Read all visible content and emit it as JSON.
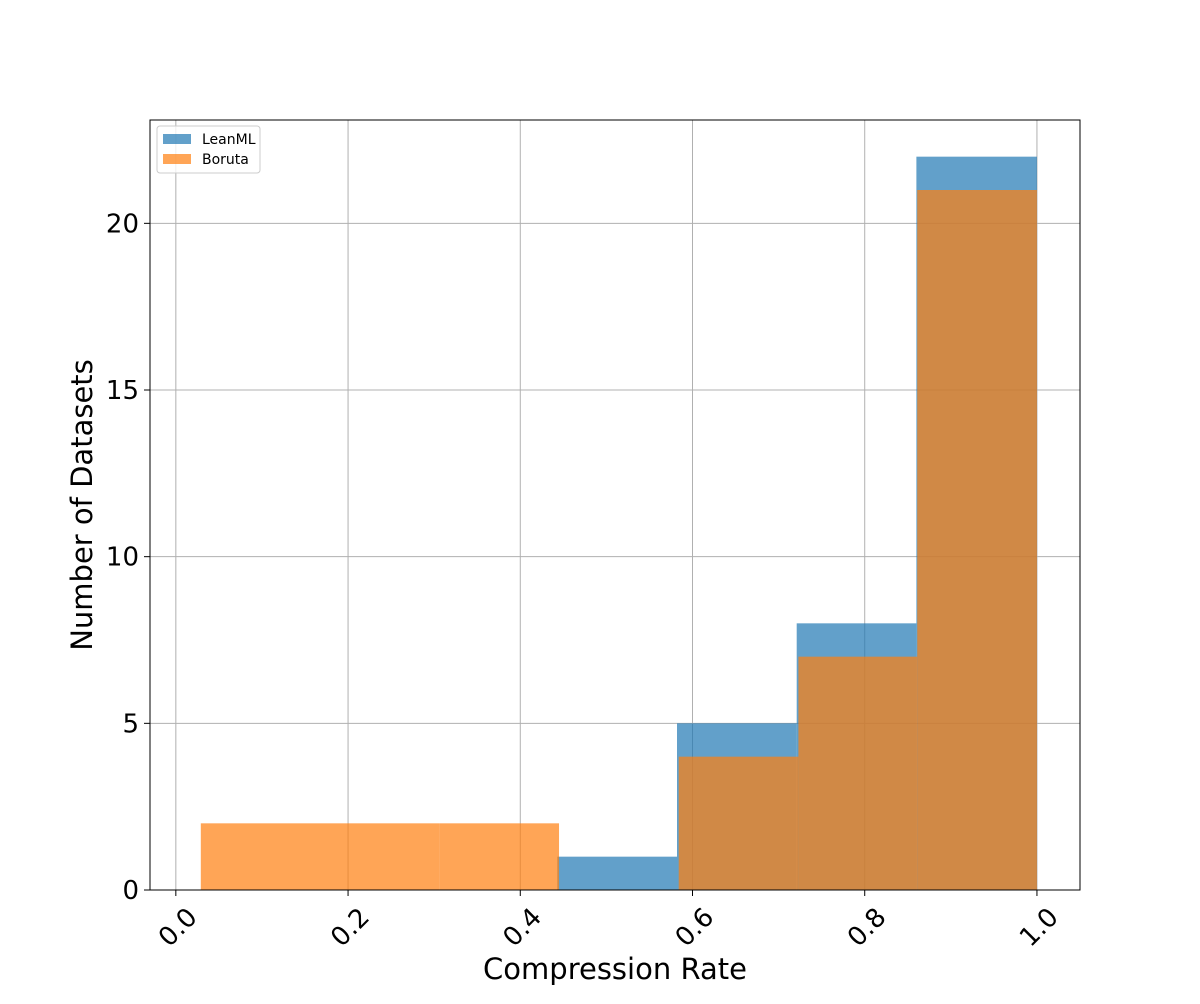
{
  "chart_data": {
    "type": "bar",
    "subtype": "overlaid histogram",
    "title": "",
    "xlabel": "Compression Rate",
    "ylabel": "Number of Datasets",
    "xlim": [
      -0.03,
      1.05
    ],
    "ylim": [
      0,
      23.1
    ],
    "xticks": [
      "0.0",
      "0.2",
      "0.4",
      "0.6",
      "0.8",
      "1.0"
    ],
    "yticks": [
      "0",
      "5",
      "10",
      "15",
      "20"
    ],
    "xtick_rotation": 45,
    "grid": true,
    "legend_position": "top-left",
    "series": [
      {
        "name": "LeanML",
        "color": "#1f77b4",
        "opacity": 0.7,
        "bin_edges": [
          0.443,
          0.582,
          0.721,
          0.86,
          1.0
        ],
        "counts": [
          1,
          5,
          8,
          22
        ]
      },
      {
        "name": "Boruta",
        "color": "#ff7f0e",
        "opacity": 0.7,
        "bin_edges": [
          0.029,
          0.168,
          0.306,
          0.445,
          0.584,
          0.723,
          0.861,
          1.0
        ],
        "counts": [
          2,
          2,
          2,
          0,
          4,
          7,
          21
        ]
      }
    ]
  }
}
